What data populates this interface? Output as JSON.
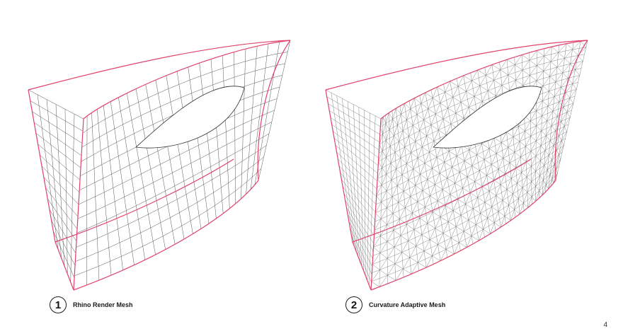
{
  "figures": [
    {
      "number": "1",
      "label": "Rhino Render Mesh",
      "mesh_type": "quad-strip",
      "density": "coarse"
    },
    {
      "number": "2",
      "label": "Curvature Adaptive Mesh",
      "mesh_type": "triangulated",
      "density": "adaptive"
    }
  ],
  "page_number": "4",
  "colors": {
    "boundary": "#e0436a",
    "mesh": "#555555",
    "background": "#ffffff"
  }
}
